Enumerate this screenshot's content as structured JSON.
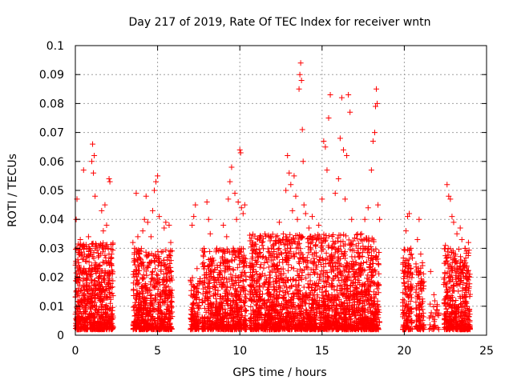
{
  "chart_data": {
    "type": "scatter",
    "title": "Day 217 of 2019, Rate Of TEC Index for receiver wntn",
    "xlabel": "GPS time / hours",
    "ylabel": "ROTI / TECUs",
    "xlim": [
      0,
      25
    ],
    "ylim": [
      0,
      0.1
    ],
    "grid": true,
    "x_ticks": [
      0,
      5,
      10,
      15,
      20,
      25
    ],
    "x_tick_labels": [
      "0",
      "5",
      "10",
      "15",
      "20",
      "25"
    ],
    "y_ticks": [
      0,
      0.01,
      0.02,
      0.03,
      0.04,
      0.05,
      0.06,
      0.07,
      0.08,
      0.09,
      0.1
    ],
    "y_tick_labels": [
      "0",
      "0.01",
      "0.02",
      "0.03",
      "0.04",
      "0.05",
      "0.06",
      "0.07",
      "0.08",
      "0.09",
      "0.1"
    ],
    "marker": "+",
    "marker_color": "#ff0000",
    "series": [
      {
        "points": [
          [
            0.05,
            0.04
          ],
          [
            0.1,
            0.047
          ],
          [
            0.15,
            0.018
          ],
          [
            0.2,
            0.025
          ],
          [
            0.3,
            0.033
          ],
          [
            0.4,
            0.031
          ],
          [
            0.5,
            0.057
          ],
          [
            0.6,
            0.022
          ],
          [
            0.7,
            0.03
          ],
          [
            0.8,
            0.034
          ],
          [
            0.9,
            0.028
          ],
          [
            1.0,
            0.06
          ],
          [
            1.05,
            0.066
          ],
          [
            1.1,
            0.056
          ],
          [
            1.15,
            0.062
          ],
          [
            1.2,
            0.048
          ],
          [
            1.3,
            0.031
          ],
          [
            1.4,
            0.027
          ],
          [
            1.5,
            0.024
          ],
          [
            1.6,
            0.043
          ],
          [
            1.7,
            0.036
          ],
          [
            1.8,
            0.045
          ],
          [
            1.9,
            0.038
          ],
          [
            2.0,
            0.03
          ],
          [
            2.05,
            0.054
          ],
          [
            2.1,
            0.053
          ],
          [
            2.2,
            0.028
          ],
          [
            3.5,
            0.032
          ],
          [
            3.6,
            0.03
          ],
          [
            3.7,
            0.049
          ],
          [
            3.8,
            0.034
          ],
          [
            3.9,
            0.028
          ],
          [
            4.0,
            0.029
          ],
          [
            4.1,
            0.036
          ],
          [
            4.2,
            0.04
          ],
          [
            4.3,
            0.048
          ],
          [
            4.4,
            0.039
          ],
          [
            4.5,
            0.025
          ],
          [
            4.6,
            0.034
          ],
          [
            4.7,
            0.043
          ],
          [
            4.8,
            0.05
          ],
          [
            4.9,
            0.053
          ],
          [
            5.0,
            0.055
          ],
          [
            5.1,
            0.041
          ],
          [
            5.2,
            0.022
          ],
          [
            5.4,
            0.037
          ],
          [
            5.5,
            0.039
          ],
          [
            5.6,
            0.026
          ],
          [
            5.7,
            0.038
          ],
          [
            5.8,
            0.032
          ],
          [
            7.0,
            0.019
          ],
          [
            7.1,
            0.038
          ],
          [
            7.2,
            0.041
          ],
          [
            7.3,
            0.045
          ],
          [
            7.4,
            0.023
          ],
          [
            7.5,
            0.01
          ],
          [
            7.8,
            0.025
          ],
          [
            8.0,
            0.046
          ],
          [
            8.1,
            0.04
          ],
          [
            8.2,
            0.035
          ],
          [
            8.3,
            0.024
          ],
          [
            8.4,
            0.02
          ],
          [
            8.6,
            0.03
          ],
          [
            8.8,
            0.024
          ],
          [
            9.0,
            0.038
          ],
          [
            9.2,
            0.034
          ],
          [
            9.3,
            0.047
          ],
          [
            9.4,
            0.053
          ],
          [
            9.5,
            0.058
          ],
          [
            9.6,
            0.03
          ],
          [
            9.7,
            0.049
          ],
          [
            9.8,
            0.04
          ],
          [
            9.9,
            0.046
          ],
          [
            10.0,
            0.064
          ],
          [
            10.05,
            0.063
          ],
          [
            10.1,
            0.044
          ],
          [
            10.2,
            0.042
          ],
          [
            10.3,
            0.045
          ],
          [
            10.8,
            0.032
          ],
          [
            11.0,
            0.014
          ],
          [
            11.2,
            0.02
          ],
          [
            11.5,
            0.025
          ],
          [
            11.8,
            0.018
          ],
          [
            12.0,
            0.028
          ],
          [
            12.2,
            0.034
          ],
          [
            12.4,
            0.039
          ],
          [
            12.6,
            0.033
          ],
          [
            12.8,
            0.05
          ],
          [
            12.9,
            0.062
          ],
          [
            13.0,
            0.056
          ],
          [
            13.1,
            0.052
          ],
          [
            13.2,
            0.043
          ],
          [
            13.3,
            0.055
          ],
          [
            13.4,
            0.048
          ],
          [
            13.5,
            0.04
          ],
          [
            13.6,
            0.085
          ],
          [
            13.65,
            0.09
          ],
          [
            13.7,
            0.094
          ],
          [
            13.75,
            0.088
          ],
          [
            13.8,
            0.071
          ],
          [
            13.85,
            0.06
          ],
          [
            13.9,
            0.045
          ],
          [
            14.0,
            0.042
          ],
          [
            14.2,
            0.037
          ],
          [
            14.4,
            0.041
          ],
          [
            14.6,
            0.031
          ],
          [
            14.8,
            0.038
          ],
          [
            15.0,
            0.047
          ],
          [
            15.1,
            0.067
          ],
          [
            15.2,
            0.065
          ],
          [
            15.3,
            0.057
          ],
          [
            15.4,
            0.075
          ],
          [
            15.5,
            0.083
          ],
          [
            15.6,
            0.03
          ],
          [
            15.8,
            0.049
          ],
          [
            16.0,
            0.054
          ],
          [
            16.1,
            0.068
          ],
          [
            16.2,
            0.082
          ],
          [
            16.3,
            0.064
          ],
          [
            16.4,
            0.047
          ],
          [
            16.5,
            0.062
          ],
          [
            16.6,
            0.083
          ],
          [
            16.7,
            0.077
          ],
          [
            16.8,
            0.04
          ],
          [
            17.0,
            0.027
          ],
          [
            17.2,
            0.03
          ],
          [
            17.4,
            0.035
          ],
          [
            17.6,
            0.04
          ],
          [
            17.8,
            0.044
          ],
          [
            18.0,
            0.057
          ],
          [
            18.1,
            0.067
          ],
          [
            18.2,
            0.07
          ],
          [
            18.25,
            0.079
          ],
          [
            18.3,
            0.085
          ],
          [
            18.35,
            0.08
          ],
          [
            18.4,
            0.045
          ],
          [
            18.5,
            0.04
          ],
          [
            20.0,
            0.022
          ],
          [
            20.1,
            0.036
          ],
          [
            20.2,
            0.041
          ],
          [
            20.3,
            0.042
          ],
          [
            20.4,
            0.03
          ],
          [
            20.8,
            0.033
          ],
          [
            20.9,
            0.04
          ],
          [
            21.0,
            0.028
          ],
          [
            21.1,
            0.025
          ],
          [
            21.6,
            0.022
          ],
          [
            21.8,
            0.014
          ],
          [
            22.0,
            0.01
          ],
          [
            22.5,
            0.031
          ],
          [
            22.6,
            0.052
          ],
          [
            22.7,
            0.048
          ],
          [
            22.8,
            0.047
          ],
          [
            22.9,
            0.041
          ],
          [
            23.0,
            0.039
          ],
          [
            23.2,
            0.035
          ],
          [
            23.4,
            0.037
          ],
          [
            23.5,
            0.033
          ],
          [
            23.7,
            0.03
          ],
          [
            23.9,
            0.032
          ]
        ]
      }
    ],
    "dense_bands": [
      {
        "x_range": [
          0.0,
          2.3
        ],
        "y_range": [
          0.002,
          0.032
        ],
        "count": 700
      },
      {
        "x_range": [
          3.5,
          5.9
        ],
        "y_range": [
          0.002,
          0.03
        ],
        "count": 650
      },
      {
        "x_range": [
          7.0,
          7.6
        ],
        "y_range": [
          0.002,
          0.02
        ],
        "count": 120
      },
      {
        "x_range": [
          7.7,
          10.4
        ],
        "y_range": [
          0.002,
          0.03
        ],
        "count": 650
      },
      {
        "x_range": [
          10.6,
          18.5
        ],
        "y_range": [
          0.002,
          0.035
        ],
        "count": 2200
      },
      {
        "x_range": [
          19.9,
          20.5
        ],
        "y_range": [
          0.002,
          0.03
        ],
        "count": 150
      },
      {
        "x_range": [
          20.7,
          21.2
        ],
        "y_range": [
          0.002,
          0.025
        ],
        "count": 110
      },
      {
        "x_range": [
          21.5,
          22.1
        ],
        "y_range": [
          0.002,
          0.012
        ],
        "count": 30
      },
      {
        "x_range": [
          22.4,
          24.0
        ],
        "y_range": [
          0.002,
          0.03
        ],
        "count": 450
      }
    ]
  }
}
